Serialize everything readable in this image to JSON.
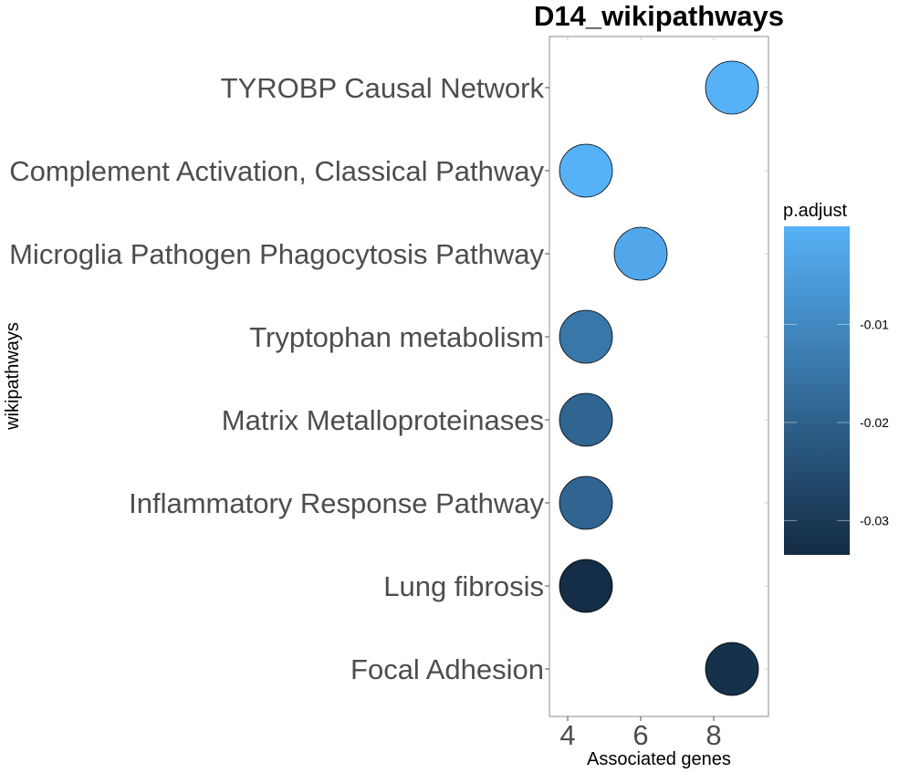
{
  "chart_data": {
    "type": "scatter",
    "title": "D14_wikipathways",
    "xlabel": "Associated genes",
    "ylabel": "wikipathways",
    "xlim": [
      3.5,
      9.5
    ],
    "xticks": [
      "4",
      "6",
      "8"
    ],
    "xtick_values": [
      4,
      6,
      8
    ],
    "categories": [
      "TYROBP Causal Network",
      "Complement Activation, Classical Pathway",
      "Microglia Pathogen Phagocytosis Pathway",
      "Tryptophan metabolism",
      "Matrix Metalloproteinases",
      "Inflammatory Response Pathway",
      "Lung fibrosis",
      "Focal Adhesion"
    ],
    "points": [
      {
        "category": "TYROBP Causal Network",
        "x": 8.5,
        "p_adjust": 0.0
      },
      {
        "category": "Complement Activation, Classical Pathway",
        "x": 4.5,
        "p_adjust": 0.0
      },
      {
        "category": "Microglia Pathogen Phagocytosis Pathway",
        "x": 6.0,
        "p_adjust": -0.0025
      },
      {
        "category": "Tryptophan metabolism",
        "x": 4.5,
        "p_adjust": -0.0145
      },
      {
        "category": "Matrix Metalloproteinases",
        "x": 4.5,
        "p_adjust": -0.019
      },
      {
        "category": "Inflammatory Response Pathway",
        "x": 4.5,
        "p_adjust": -0.019
      },
      {
        "category": "Lung fibrosis",
        "x": 4.5,
        "p_adjust": -0.033
      },
      {
        "category": "Focal Adhesion",
        "x": 8.5,
        "p_adjust": -0.032
      }
    ],
    "color_scale": {
      "title": "p.adjust",
      "min": -0.0335,
      "max": 0.0,
      "low_color": "#132b43",
      "high_color": "#56b1f7",
      "ticks": [
        "-0.01",
        "-0.02",
        "-0.03"
      ],
      "tick_values": [
        -0.01,
        -0.02,
        -0.03
      ]
    },
    "grid": false,
    "legend_position": "right"
  }
}
